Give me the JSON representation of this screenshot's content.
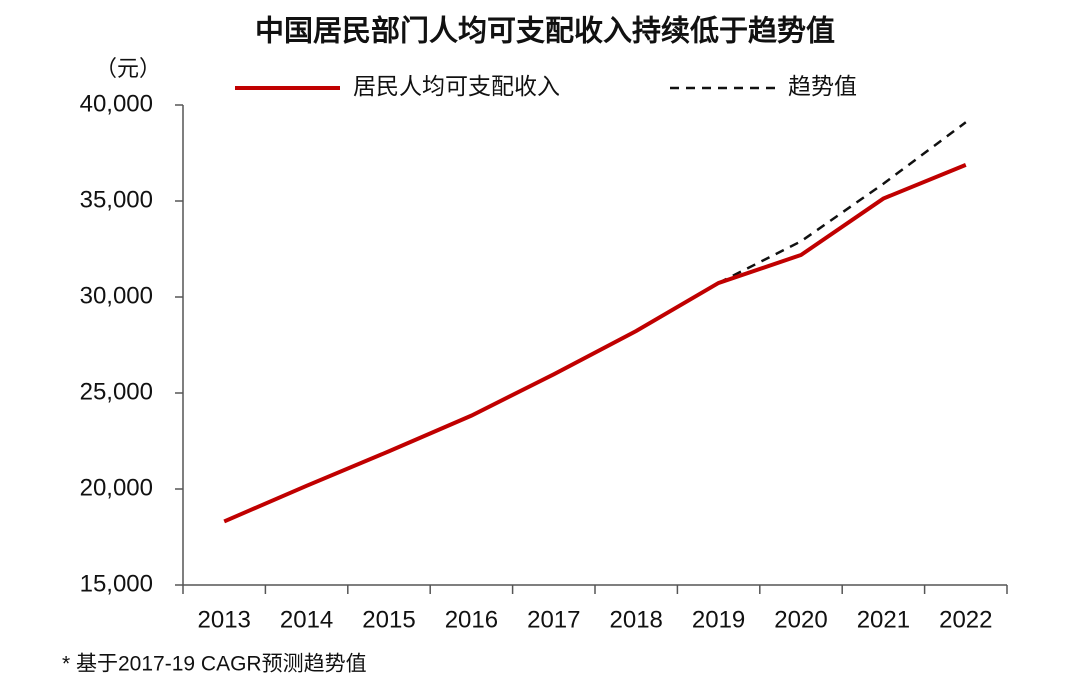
{
  "chart_data": {
    "type": "line",
    "title": "中国居民部门人均可支配收入持续低于趋势值",
    "y_label": "（元）",
    "footnote": "* 基于2017-19 CAGR预测趋势值",
    "categories": [
      "2013",
      "2014",
      "2015",
      "2016",
      "2017",
      "2018",
      "2019",
      "2020",
      "2021",
      "2022"
    ],
    "series": [
      {
        "name": "居民人均可支配收入",
        "color": "#c00000",
        "dash": false,
        "values": [
          18311,
          20167,
          21966,
          23821,
          25974,
          28228,
          30733,
          32189,
          35128,
          36883
        ]
      },
      {
        "name": "趋势值",
        "color": "#111111",
        "dash": true,
        "values": [
          null,
          null,
          null,
          null,
          null,
          null,
          30733,
          32900,
          35900,
          39100
        ]
      }
    ],
    "ylim": [
      15000,
      40000
    ],
    "yticks": [
      {
        "value": 15000,
        "label": "15,000"
      },
      {
        "value": 20000,
        "label": "20,000"
      },
      {
        "value": 25000,
        "label": "25,000"
      },
      {
        "value": 30000,
        "label": "30,000"
      },
      {
        "value": 35000,
        "label": "35,000"
      },
      {
        "value": 40000,
        "label": "40,000"
      }
    ],
    "grid": false
  }
}
